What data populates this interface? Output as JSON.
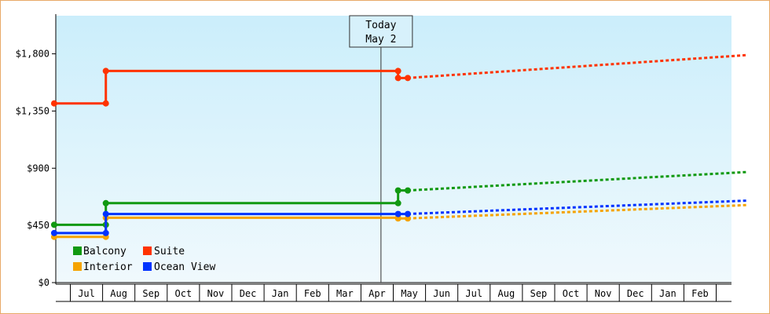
{
  "chart_data": {
    "type": "line",
    "title": "",
    "xlabel": "",
    "ylabel": "",
    "ylim": [
      0,
      2100
    ],
    "y_ticks": [
      0,
      450,
      900,
      1350,
      1800
    ],
    "y_tick_labels": [
      "$0",
      "$450",
      "$900",
      "$1,350",
      "$1,800"
    ],
    "x_start": "Jun 1",
    "x_months": [
      "Jul",
      "Aug",
      "Sep",
      "Oct",
      "Nov",
      "Dec",
      "Jan",
      "Feb",
      "Mar",
      "Apr",
      "May",
      "Jun",
      "Jul",
      "Aug",
      "Sep",
      "Oct",
      "Nov",
      "Dec",
      "Jan",
      "Feb"
    ],
    "today_marker": {
      "line1": "Today",
      "line2": "May 2",
      "x": 10.07
    },
    "colors": {
      "plot_top": "#cbeefb",
      "plot_bottom": "#f0f9fd",
      "frame": "#e8a968"
    },
    "legend_position": "bottom-left",
    "series": [
      {
        "name": "Balcony",
        "color": "#119911",
        "steps": [
          [
            -0.05,
            455
          ],
          [
            1.55,
            455
          ],
          [
            1.55,
            625
          ],
          [
            10.6,
            625
          ],
          [
            10.6,
            725
          ],
          [
            10.9,
            725
          ]
        ],
        "markers": [
          [
            -0.05,
            455
          ],
          [
            1.55,
            455
          ],
          [
            1.55,
            625
          ],
          [
            10.6,
            625
          ],
          [
            10.6,
            725
          ],
          [
            10.9,
            725
          ]
        ],
        "forecast": [
          [
            10.9,
            725
          ],
          [
            21.4,
            870
          ]
        ]
      },
      {
        "name": "Suite",
        "color": "#ff3300",
        "steps": [
          [
            -0.05,
            1410
          ],
          [
            1.55,
            1410
          ],
          [
            1.55,
            1665
          ],
          [
            10.6,
            1665
          ],
          [
            10.6,
            1610
          ],
          [
            10.9,
            1610
          ]
        ],
        "markers": [
          [
            -0.05,
            1410
          ],
          [
            1.55,
            1410
          ],
          [
            1.55,
            1665
          ],
          [
            10.6,
            1665
          ],
          [
            10.6,
            1610
          ],
          [
            10.9,
            1610
          ]
        ],
        "forecast": [
          [
            10.9,
            1610
          ],
          [
            21.4,
            1790
          ]
        ]
      },
      {
        "name": "Interior",
        "color": "#f5a300",
        "steps": [
          [
            -0.05,
            360
          ],
          [
            1.55,
            360
          ],
          [
            1.55,
            510
          ],
          [
            10.6,
            510
          ],
          [
            10.6,
            505
          ],
          [
            10.9,
            505
          ]
        ],
        "markers": [
          [
            -0.05,
            360
          ],
          [
            1.55,
            360
          ],
          [
            1.55,
            510
          ],
          [
            10.6,
            510
          ],
          [
            10.6,
            505
          ],
          [
            10.9,
            505
          ]
        ],
        "forecast": [
          [
            10.9,
            505
          ],
          [
            21.4,
            610
          ]
        ]
      },
      {
        "name": "Ocean View",
        "color": "#0033ff",
        "steps": [
          [
            -0.05,
            390
          ],
          [
            1.55,
            390
          ],
          [
            1.55,
            540
          ],
          [
            10.6,
            540
          ],
          [
            10.9,
            540
          ]
        ],
        "markers": [
          [
            -0.05,
            390
          ],
          [
            1.55,
            390
          ],
          [
            1.55,
            540
          ],
          [
            10.6,
            540
          ],
          [
            10.9,
            540
          ]
        ],
        "forecast": [
          [
            10.9,
            540
          ],
          [
            21.4,
            645
          ]
        ]
      }
    ]
  }
}
